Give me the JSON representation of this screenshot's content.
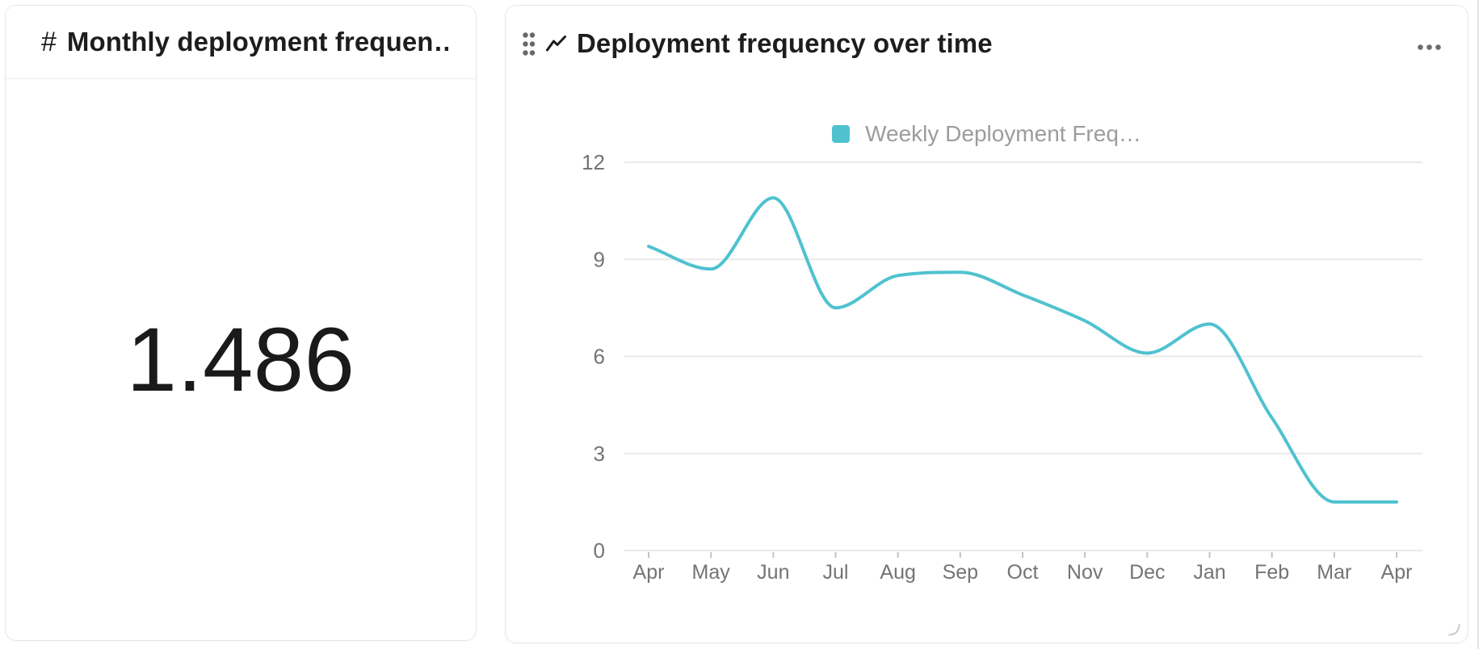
{
  "metric_card": {
    "icon": "#",
    "title": "Monthly deployment frequen…",
    "value": "1.486"
  },
  "chart_card": {
    "title": "Deployment frequency over time",
    "legend_label": "Weekly Deployment Freq…"
  },
  "chart_data": {
    "type": "line",
    "title": "Deployment frequency over time",
    "categories": [
      "Apr",
      "May",
      "Jun",
      "Jul",
      "Aug",
      "Sep",
      "Oct",
      "Nov",
      "Dec",
      "Jan",
      "Feb",
      "Mar",
      "Apr"
    ],
    "series": [
      {
        "name": "Weekly Deployment Freq…",
        "values": [
          9.4,
          8.7,
          10.9,
          7.5,
          8.5,
          8.6,
          7.9,
          7.1,
          6.1,
          7,
          4.1,
          1.5,
          1.5
        ],
        "color": "#4fc2cf"
      }
    ],
    "xlabel": "",
    "ylabel": "",
    "ylim": [
      0,
      12
    ],
    "y_ticks": [
      0,
      3,
      6,
      9,
      12
    ],
    "grid": true,
    "legend_position": "top",
    "smooth": true
  },
  "colors": {
    "accent": "#4fc2cf",
    "title_text": "#1d1d1f",
    "axis_text": "#747474",
    "legend_text": "#9c9c9c",
    "gridline": "#e9e9e9",
    "tick_mark": "#c2c2c2",
    "card_border": "#e7e7e7"
  }
}
